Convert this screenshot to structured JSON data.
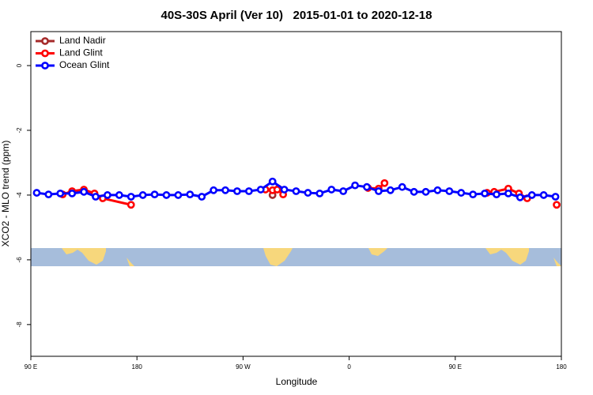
{
  "chart_data": {
    "type": "line",
    "title": "40S-30S April (Ver 10)   2015-01-01 to 2020-12-18",
    "x_label": "Longitude",
    "y_label": "XCO2 - MLO trend (ppm)",
    "xlim": [
      90,
      540
    ],
    "xticks": [
      {
        "value": 90,
        "label": "90 E"
      },
      180,
      {
        "value": 270,
        "label": "90 W"
      },
      {
        "value": 360,
        "label": "0"
      },
      {
        "value": 450,
        "label": "90 E"
      },
      {
        "value": 540,
        "label": "180"
      }
    ],
    "ylim": [
      -8.98,
      1.05
    ],
    "yticks": [
      -8,
      -6,
      -4,
      -2,
      0
    ],
    "legend": "top-left",
    "series": [
      {
        "name": "Land Nadir",
        "color": "#a52a2a",
        "x": [
          295,
          300
        ],
        "values": [
          -4.0,
          -3.8
        ]
      },
      {
        "name": "Land Glint",
        "color": "#ff0000",
        "x": [
          117,
          125,
          135,
          144,
          151,
          175,
          230,
          289,
          295,
          299,
          304,
          340,
          376,
          385,
          390,
          440,
          477,
          483,
          495,
          504,
          511,
          520,
          536
        ],
        "values": [
          -3.98,
          -3.88,
          -3.83,
          -3.95,
          -4.1,
          -4.3,
          null,
          -3.83,
          -3.85,
          -3.83,
          -3.98,
          null,
          -3.78,
          -3.8,
          -3.63,
          null,
          -3.93,
          -3.9,
          -3.8,
          -3.95,
          -4.1,
          null,
          -4.3
        ]
      },
      {
        "name": "Ocean Glint",
        "color": "#0000ff",
        "x": [
          95,
          105,
          115,
          125,
          135,
          145,
          155,
          165,
          175,
          185,
          195,
          205,
          215,
          225,
          235,
          245,
          255,
          265,
          275,
          285,
          295,
          305,
          315,
          325,
          335,
          345,
          355,
          365,
          375,
          385,
          395,
          405,
          415,
          425,
          435,
          445,
          455,
          465,
          475,
          485,
          495,
          505,
          515,
          525,
          535
        ],
        "values": [
          -3.93,
          -3.98,
          -3.95,
          -3.95,
          -3.9,
          -4.05,
          -4.0,
          -4.0,
          -4.05,
          -4.0,
          -3.98,
          -4.0,
          -4.0,
          -3.98,
          -4.05,
          -3.85,
          -3.85,
          -3.88,
          -3.88,
          -3.83,
          -3.58,
          -3.83,
          -3.88,
          -3.93,
          -3.95,
          -3.83,
          -3.88,
          -3.7,
          -3.75,
          -3.88,
          -3.85,
          -3.75,
          -3.9,
          -3.9,
          -3.85,
          -3.88,
          -3.93,
          -3.98,
          -3.95,
          -3.98,
          -3.95,
          -4.07,
          -4.0,
          -4.0,
          -4.05
        ]
      }
    ]
  }
}
